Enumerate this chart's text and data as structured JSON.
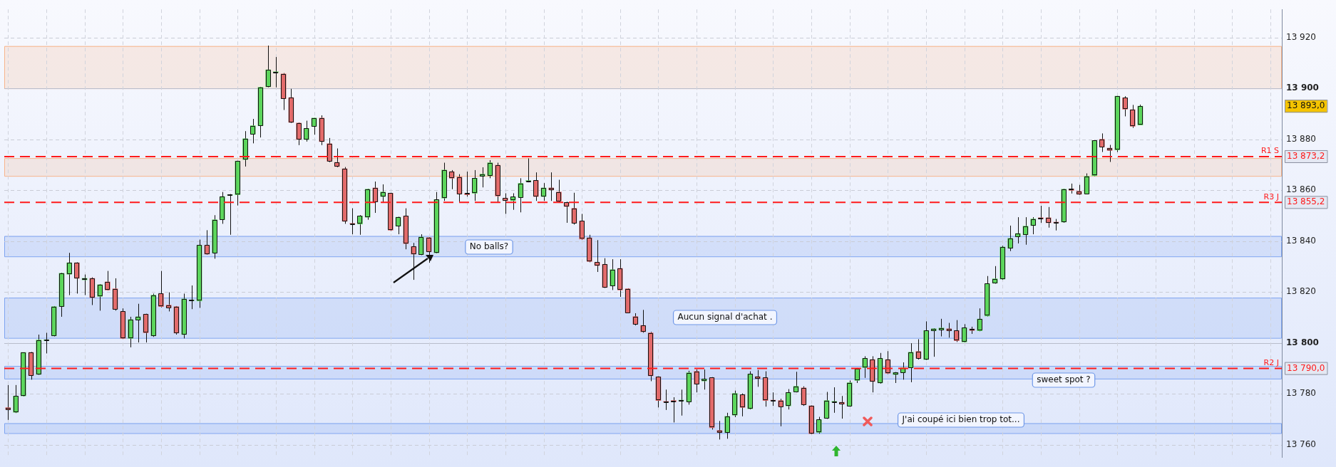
{
  "chart_data": {
    "type": "candlestick",
    "categories": [
      null,
      null,
      null,
      null,
      null,
      null,
      null,
      null,
      null,
      null,
      null,
      null,
      null,
      null,
      null,
      null,
      null,
      null,
      null,
      null,
      null,
      null,
      null,
      null,
      null,
      null,
      null,
      null,
      null,
      null,
      null,
      null,
      null,
      null,
      null,
      null,
      null,
      null,
      null,
      null,
      null,
      null,
      null,
      null,
      null,
      null,
      null,
      null,
      null,
      null,
      null,
      null,
      null,
      null,
      null,
      null,
      null,
      null,
      null,
      null,
      null,
      null,
      null,
      null,
      null,
      null,
      null,
      null,
      null,
      null,
      null,
      null,
      null,
      null,
      null,
      null,
      null,
      null,
      null,
      null,
      null,
      null,
      null,
      null,
      null,
      null,
      null,
      null,
      null,
      null,
      null,
      null,
      null,
      null,
      null,
      null,
      null,
      null,
      null,
      null,
      null,
      null,
      null,
      null,
      null,
      null,
      null,
      null,
      null,
      null,
      null,
      null,
      null,
      null,
      null,
      null,
      null,
      null,
      null,
      null,
      null,
      null,
      null,
      null,
      null,
      null,
      null,
      null,
      null,
      null,
      null,
      null,
      null,
      null,
      null,
      null,
      null,
      null,
      null,
      null,
      null,
      null,
      null,
      null,
      null,
      null,
      null,
      null,
      null,
      null,
      null,
      null,
      null,
      null,
      null,
      null,
      null,
      null,
      null,
      null,
      null,
      null,
      null,
      null,
      null,
      null,
      null
    ],
    "ohlc": [
      [
        13774.6,
        13783.5,
        13769.8,
        13773.9
      ],
      [
        13772.8,
        13783.5,
        13772.5,
        13779.2
      ],
      [
        13779.2,
        13796.3,
        13779.0,
        13796.3
      ],
      [
        13796.3,
        13796.5,
        13785.6,
        13787.2
      ],
      [
        13787.7,
        13803.3,
        13787.5,
        13801.2
      ],
      [
        13801.0,
        13804.0,
        13795.9,
        13801.2
      ],
      [
        13802.8,
        13814.5,
        13802.6,
        13814.3
      ],
      [
        13814.3,
        13827.6,
        13810.3,
        13827.4
      ],
      [
        13827.0,
        13835.4,
        13818.8,
        13831.5
      ],
      [
        13831.5,
        13831.7,
        13819.4,
        13825.4
      ],
      [
        13824.8,
        13826.9,
        13818.8,
        13825.4
      ],
      [
        13825.4,
        13825.8,
        13814.9,
        13817.8
      ],
      [
        13818.3,
        13823.1,
        13812.7,
        13822.9
      ],
      [
        13824.0,
        13828.3,
        13820.6,
        13820.8
      ],
      [
        13821.3,
        13825.4,
        13812.7,
        13813.3
      ],
      [
        13812.4,
        13813.6,
        13801.6,
        13801.8
      ],
      [
        13801.8,
        13810.3,
        13798.3,
        13809.2
      ],
      [
        13809.0,
        13815.4,
        13800.2,
        13810.3
      ],
      [
        13811.3,
        13811.5,
        13800.2,
        13804.0
      ],
      [
        13802.8,
        13819.4,
        13802.4,
        13818.8
      ],
      [
        13819.4,
        13828.3,
        13814.0,
        13814.3
      ],
      [
        13814.9,
        13819.9,
        13812.4,
        13813.8
      ],
      [
        13814.3,
        13814.5,
        13803.3,
        13803.9
      ],
      [
        13803.3,
        13819.4,
        13801.8,
        13817.3
      ],
      [
        13816.6,
        13822.6,
        13813.3,
        13816.9
      ],
      [
        13816.5,
        13840.6,
        13813.8,
        13838.4
      ],
      [
        13838.4,
        13844.3,
        13834.7,
        13834.9
      ],
      [
        13835.4,
        13850.2,
        13833.1,
        13848.4
      ],
      [
        13848.4,
        13859.3,
        13846.8,
        13857.5
      ],
      [
        13858.0,
        13858.5,
        13842.5,
        13858.1
      ],
      [
        13858.2,
        13871.6,
        13854.0,
        13871.4
      ],
      [
        13872.0,
        13883.2,
        13869.3,
        13880.2
      ],
      [
        13882.0,
        13888.0,
        13878.4,
        13885.3
      ],
      [
        13885.3,
        13900.6,
        13880.7,
        13900.4
      ],
      [
        13900.6,
        13916.8,
        13900.4,
        13907.3
      ],
      [
        13906.2,
        13912.3,
        13900.4,
        13906.4
      ],
      [
        13905.7,
        13906.0,
        13891.5,
        13895.9
      ],
      [
        13896.4,
        13899.8,
        13886.4,
        13886.6
      ],
      [
        13886.4,
        13886.6,
        13877.7,
        13879.9
      ],
      [
        13879.9,
        13887.3,
        13879.1,
        13884.3
      ],
      [
        13885.0,
        13888.4,
        13881.8,
        13888.3
      ],
      [
        13888.3,
        13889.4,
        13877.7,
        13879.1
      ],
      [
        13878.3,
        13880.5,
        13871.0,
        13871.4
      ],
      [
        13870.9,
        13876.4,
        13869.0,
        13869.3
      ],
      [
        13868.4,
        13869.1,
        13846.8,
        13847.8
      ],
      [
        13846.9,
        13852.9,
        13842.7,
        13846.7
      ],
      [
        13846.7,
        13850.2,
        13842.5,
        13849.9
      ],
      [
        13849.4,
        13860.6,
        13848.4,
        13860.4
      ],
      [
        13860.9,
        13863.4,
        13851.1,
        13855.4
      ],
      [
        13857.5,
        13862.3,
        13855.0,
        13859.3
      ],
      [
        13858.8,
        13859.0,
        13844.0,
        13844.3
      ],
      [
        13845.9,
        13849.6,
        13842.7,
        13849.4
      ],
      [
        13849.9,
        13852.9,
        13836.8,
        13839.0
      ],
      [
        13837.9,
        13839.3,
        13824.8,
        13834.9
      ],
      [
        13834.7,
        13842.7,
        13834.5,
        13841.6
      ],
      [
        13841.4,
        13841.6,
        13831.5,
        13835.8
      ],
      [
        13835.4,
        13859.3,
        13835.2,
        13856.3
      ],
      [
        13856.9,
        13870.8,
        13855.8,
        13867.9
      ],
      [
        13867.3,
        13867.9,
        13860.4,
        13864.7
      ],
      [
        13865.2,
        13866.3,
        13855.4,
        13858.5
      ],
      [
        13858.8,
        13867.3,
        13857.5,
        13858.2
      ],
      [
        13858.8,
        13867.9,
        13855.8,
        13864.7
      ],
      [
        13865.5,
        13869.0,
        13861.1,
        13866.3
      ],
      [
        13865.7,
        13871.8,
        13864.7,
        13870.8
      ],
      [
        13869.8,
        13870.8,
        13855.0,
        13857.7
      ],
      [
        13856.9,
        13858.8,
        13850.7,
        13855.9
      ],
      [
        13855.9,
        13858.8,
        13852.3,
        13857.4
      ],
      [
        13857.2,
        13864.7,
        13851.3,
        13862.7
      ],
      [
        13863.5,
        13872.5,
        13863.1,
        13863.7
      ],
      [
        13863.9,
        13867.0,
        13855.8,
        13857.5
      ],
      [
        13857.5,
        13862.8,
        13855.8,
        13860.9
      ],
      [
        13860.9,
        13867.0,
        13855.8,
        13860.1
      ],
      [
        13859.3,
        13864.1,
        13855.0,
        13855.8
      ],
      [
        13855.2,
        13855.5,
        13847.2,
        13853.6
      ],
      [
        13852.9,
        13859.0,
        13846.5,
        13847.0
      ],
      [
        13847.9,
        13850.7,
        13840.5,
        13840.8
      ],
      [
        13841.3,
        13842.5,
        13831.7,
        13832.0
      ],
      [
        13831.7,
        13840.4,
        13827.9,
        13830.4
      ],
      [
        13830.9,
        13833.3,
        13821.6,
        13821.8
      ],
      [
        13822.4,
        13832.9,
        13820.8,
        13828.8
      ],
      [
        13829.3,
        13832.9,
        13818.1,
        13820.8
      ],
      [
        13821.3,
        13821.5,
        13811.7,
        13811.9
      ],
      [
        13810.4,
        13811.7,
        13806.9,
        13807.4
      ],
      [
        13806.9,
        13813.0,
        13804.0,
        13804.4
      ],
      [
        13804.0,
        13804.4,
        13785.0,
        13787.1
      ],
      [
        13786.7,
        13786.9,
        13774.7,
        13777.4
      ],
      [
        13776.9,
        13781.7,
        13773.7,
        13776.8
      ],
      [
        13777.4,
        13778.7,
        13768.8,
        13776.9
      ],
      [
        13777.3,
        13781.7,
        13771.5,
        13777.5
      ],
      [
        13776.9,
        13789.1,
        13775.8,
        13788.3
      ],
      [
        13788.9,
        13789.6,
        13780.6,
        13783.8
      ],
      [
        13785.1,
        13789.6,
        13781.7,
        13785.9
      ],
      [
        13786.4,
        13786.6,
        13766.0,
        13766.7
      ],
      [
        13765.7,
        13769.4,
        13762.1,
        13764.9
      ],
      [
        13764.8,
        13772.6,
        13762.4,
        13771.2
      ],
      [
        13771.7,
        13781.3,
        13770.9,
        13780.2
      ],
      [
        13779.7,
        13780.2,
        13771.2,
        13774.7
      ],
      [
        13774.2,
        13788.9,
        13773.9,
        13787.8
      ],
      [
        13786.8,
        13789.4,
        13782.8,
        13786.0
      ],
      [
        13786.4,
        13788.9,
        13775.0,
        13777.4
      ],
      [
        13777.5,
        13780.6,
        13775.3,
        13777.3
      ],
      [
        13777.4,
        13778.1,
        13767.3,
        13775.0
      ],
      [
        13775.3,
        13781.9,
        13773.9,
        13780.6
      ],
      [
        13780.8,
        13788.7,
        13780.6,
        13783.0
      ],
      [
        13782.4,
        13783.0,
        13775.3,
        13775.8
      ],
      [
        13775.3,
        13775.5,
        13764.2,
        13764.4
      ],
      [
        13764.9,
        13771.0,
        13764.4,
        13769.9
      ],
      [
        13770.4,
        13780.8,
        13770.2,
        13777.4
      ],
      [
        13776.8,
        13782.6,
        13772.6,
        13776.9
      ],
      [
        13776.7,
        13779.2,
        13770.3,
        13776.0
      ],
      [
        13775.3,
        13785.3,
        13775.0,
        13784.4
      ],
      [
        13785.3,
        13790.2,
        13784.3,
        13789.8
      ],
      [
        13790.3,
        13794.8,
        13786.3,
        13794.0
      ],
      [
        13793.5,
        13794.8,
        13780.6,
        13784.9
      ],
      [
        13784.3,
        13796.1,
        13784.0,
        13794.0
      ],
      [
        13793.5,
        13796.8,
        13787.8,
        13788.1
      ],
      [
        13787.6,
        13788.6,
        13784.3,
        13788.4
      ],
      [
        13788.4,
        13792.4,
        13785.6,
        13790.3
      ],
      [
        13790.3,
        13799.9,
        13784.6,
        13796.4
      ],
      [
        13796.7,
        13801.5,
        13793.5,
        13794.0
      ],
      [
        13793.5,
        13808.5,
        13793.3,
        13804.9
      ],
      [
        13804.8,
        13805.8,
        13794.6,
        13805.6
      ],
      [
        13805.2,
        13809.5,
        13802.6,
        13805.9
      ],
      [
        13805.6,
        13807.9,
        13802.1,
        13804.8
      ],
      [
        13804.9,
        13809.0,
        13800.4,
        13800.9
      ],
      [
        13800.4,
        13807.4,
        13800.2,
        13806.0
      ],
      [
        13805.5,
        13806.4,
        13803.6,
        13804.9
      ],
      [
        13804.8,
        13813.6,
        13804.6,
        13809.4
      ],
      [
        13810.6,
        13826.3,
        13810.4,
        13823.3
      ],
      [
        13823.5,
        13830.2,
        13823.3,
        13825.2
      ],
      [
        13825.1,
        13838.2,
        13824.8,
        13837.7
      ],
      [
        13837.2,
        13846.1,
        13836.1,
        13841.1
      ],
      [
        13841.7,
        13849.4,
        13839.1,
        13843.0
      ],
      [
        13842.5,
        13849.4,
        13838.6,
        13845.9
      ],
      [
        13846.1,
        13849.4,
        13842.7,
        13848.7
      ],
      [
        13849.2,
        13853.9,
        13847.2,
        13848.7
      ],
      [
        13849.2,
        13853.4,
        13845.3,
        13847.2
      ],
      [
        13847.3,
        13848.7,
        13844.2,
        13847.2
      ],
      [
        13847.5,
        13860.6,
        13847.2,
        13860.4
      ],
      [
        13860.5,
        13862.6,
        13858.7,
        13859.9
      ],
      [
        13859.6,
        13862.1,
        13858.2,
        13858.4
      ],
      [
        13858.6,
        13866.6,
        13858.4,
        13865.5
      ],
      [
        13865.7,
        13879.7,
        13865.5,
        13879.5
      ],
      [
        13880.0,
        13882.3,
        13875.0,
        13877.0
      ],
      [
        13876.5,
        13877.8,
        13871.1,
        13875.6
      ],
      [
        13875.8,
        13897.0,
        13875.0,
        13896.9
      ],
      [
        13896.3,
        13896.9,
        13889.0,
        13891.8
      ],
      [
        13891.6,
        13893.5,
        13884.5,
        13885.1
      ],
      [
        13885.6,
        13893.6,
        13885.5,
        13893.0
      ],
      null,
      null,
      null,
      null,
      null,
      null,
      null,
      null,
      null,
      null,
      null,
      null,
      null,
      null,
      null,
      null,
      null,
      null
    ],
    "colors": [
      "#e36b6b",
      "#5cd65c",
      "#5cd65c",
      "#e36b6b",
      "#5cd65c",
      "#5cd65c",
      "#5cd65c",
      "#5cd65c",
      "#5cd65c",
      "#e36b6b",
      "#5cd65c",
      "#e36b6b",
      "#5cd65c",
      "#e36b6b",
      "#e36b6b",
      "#e36b6b",
      "#5cd65c",
      "#5cd65c",
      "#e36b6b",
      "#5cd65c",
      "#e36b6b",
      "#e36b6b",
      "#e36b6b",
      "#5cd65c",
      "#5cd65c",
      "#5cd65c",
      "#e36b6b",
      "#5cd65c",
      "#5cd65c",
      "#5cd65c",
      "#5cd65c",
      "#5cd65c",
      "#5cd65c",
      "#5cd65c",
      "#5cd65c",
      "#5cd65c",
      "#e36b6b",
      "#e36b6b",
      "#e36b6b",
      "#5cd65c",
      "#5cd65c",
      "#e36b6b",
      "#e36b6b",
      "#e36b6b",
      "#e36b6b",
      "#e36b6b",
      "#5cd65c",
      "#5cd65c",
      "#e36b6b",
      "#5cd65c",
      "#e36b6b",
      "#5cd65c",
      "#e36b6b",
      "#e36b6b",
      "#5cd65c",
      "#e36b6b",
      "#5cd65c",
      "#5cd65c",
      "#e36b6b",
      "#e36b6b",
      "#e36b6b",
      "#5cd65c",
      "#5cd65c",
      "#5cd65c",
      "#e36b6b",
      "#e36b6b",
      "#5cd65c",
      "#5cd65c",
      "#5cd65c",
      "#e36b6b",
      "#5cd65c",
      "#e36b6b",
      "#e36b6b",
      "#e36b6b",
      "#e36b6b",
      "#e36b6b",
      "#e36b6b",
      "#e36b6b",
      "#e36b6b",
      "#5cd65c",
      "#e36b6b",
      "#e36b6b",
      "#e36b6b",
      "#e36b6b",
      "#e36b6b",
      "#e36b6b",
      "#e36b6b",
      "#e36b6b",
      "#5cd65c",
      "#5cd65c",
      "#e36b6b",
      "#5cd65c",
      "#e36b6b",
      "#e36b6b",
      "#5cd65c",
      "#5cd65c",
      "#e36b6b",
      "#5cd65c",
      "#e36b6b",
      "#e36b6b",
      "#e36b6b",
      "#e36b6b",
      "#5cd65c",
      "#5cd65c",
      "#e36b6b",
      "#e36b6b",
      "#5cd65c",
      "#5cd65c",
      "#5cd65c",
      "#e36b6b",
      "#5cd65c",
      "#5cd65c",
      "#5cd65c",
      "#e36b6b",
      "#5cd65c",
      "#e36b6b",
      "#5cd65c",
      "#5cd65c",
      "#5cd65c",
      "#e36b6b",
      "#5cd65c",
      "#5cd65c",
      "#5cd65c",
      "#e36b6b",
      "#e36b6b",
      "#5cd65c",
      "#e36b6b",
      "#5cd65c",
      "#5cd65c",
      "#5cd65c",
      "#5cd65c",
      "#5cd65c",
      "#5cd65c",
      "#5cd65c",
      "#5cd65c",
      "#e36b6b",
      "#e36b6b",
      "#e36b6b",
      "#5cd65c",
      "#e36b6b",
      "#e36b6b",
      "#5cd65c",
      "#5cd65c",
      "#e36b6b",
      "#e36b6b",
      "#5cd65c",
      "#e36b6b",
      "#e36b6b",
      "#5cd65c",
      null,
      null,
      null,
      null,
      null,
      null,
      null,
      null,
      null,
      null,
      null,
      null,
      null,
      null,
      null,
      null,
      null,
      null
    ],
    "ylim": [
      13755,
      13931
    ],
    "yticks": [
      {
        "value": 13760,
        "label": "13 760"
      },
      {
        "value": 13780,
        "label": "13 780"
      },
      {
        "value": 13800,
        "label": "13 800"
      },
      {
        "value": 13820,
        "label": "13 820"
      },
      {
        "value": 13840,
        "label": "13 840"
      },
      {
        "value": 13860,
        "label": "13 860"
      },
      {
        "value": 13880,
        "label": "13 880"
      },
      {
        "value": 13900,
        "label": "13 900"
      },
      {
        "value": 13920,
        "label": "13 920"
      }
    ],
    "tick_labels": "y",
    "grid": true,
    "legend": false,
    "ref_lines": [
      {
        "axis": "y",
        "value": 13873.2,
        "label": "R1 S",
        "color": "#ff1a1a",
        "line_style": "dashed"
      },
      {
        "axis": "y",
        "value": 13855.2,
        "label": "R3 J",
        "color": "#ff1a1a",
        "line_style": "dashed"
      },
      {
        "axis": "y",
        "value": 13790.0,
        "label": "R2 J",
        "color": "#ff1a1a",
        "line_style": "dashed"
      }
    ],
    "bands": [
      {
        "axis": "y",
        "from": 13900,
        "to": 13916.6,
        "color": "#f7b48c"
      },
      {
        "axis": "y",
        "from": 13865.6,
        "to": 13872.6,
        "color": "#f7b48c"
      },
      {
        "axis": "y",
        "from": 13834,
        "to": 13842,
        "color": "#7ea4f0"
      },
      {
        "axis": "y",
        "from": 13802,
        "to": 13817.8,
        "color": "#7ea4f0"
      },
      {
        "axis": "y",
        "from": 13786,
        "to": 13791,
        "color": "#7ea4f0"
      },
      {
        "axis": "y",
        "from": 13764.6,
        "to": 13768.5,
        "color": "#7ea4f0"
      }
    ],
    "annotations": [
      "No balls?",
      "Aucun signal d'achat .",
      "J'ai coupé ici bien trop tot...",
      "sweet spot ?",
      "13 893,0",
      "13 873,2",
      "13 855,2",
      "13 790,0"
    ]
  }
}
